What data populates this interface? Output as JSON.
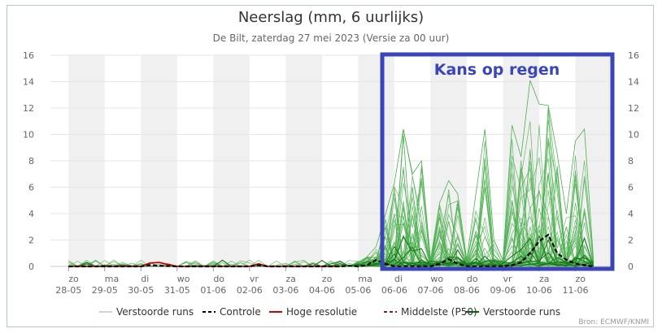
{
  "chart_data": {
    "type": "line",
    "title": "Neerslag (mm, 6 uurlijks)",
    "subtitle": "De Bilt, zaterdag 27 mei 2023 (Versie za 00 uur)",
    "ylim": [
      0,
      16
    ],
    "yticks": [
      0,
      2,
      4,
      6,
      8,
      10,
      12,
      14,
      16
    ],
    "x_range": [
      -0.5,
      15
    ],
    "day_labels": [
      {
        "day": "zo",
        "date": "28-05"
      },
      {
        "day": "ma",
        "date": "29-05"
      },
      {
        "day": "di",
        "date": "30-05"
      },
      {
        "day": "wo",
        "date": "31-05"
      },
      {
        "day": "do",
        "date": "01-06"
      },
      {
        "day": "vr",
        "date": "02-06"
      },
      {
        "day": "za",
        "date": "03-06"
      },
      {
        "day": "zo",
        "date": "04-06"
      },
      {
        "day": "ma",
        "date": "05-06"
      },
      {
        "day": "di",
        "date": "06-06"
      },
      {
        "day": "wo",
        "date": "07-06"
      },
      {
        "day": "do",
        "date": "08-06"
      },
      {
        "day": "vr",
        "date": "09-06"
      },
      {
        "day": "za",
        "date": "10-06"
      },
      {
        "day": "zo",
        "date": "11-06"
      }
    ],
    "grid": true,
    "legend_position": "bottom",
    "legend": [
      {
        "label": "Verstoorde runs",
        "color": "#a8d8a0",
        "style": "solid-thin"
      },
      {
        "label": "Controle",
        "color": "#000000",
        "style": "dashed"
      },
      {
        "label": "Hoge resolutie",
        "color": "#cc0000",
        "style": "solid"
      },
      {
        "label": "Middelste (P50)",
        "color": "#8b1a1a",
        "style": "dashed"
      },
      {
        "label": "Verstoorde runs",
        "color": "#006400",
        "style": "solid"
      }
    ],
    "controle": {
      "x": [
        0,
        1,
        2,
        2.25,
        2.5,
        3,
        4,
        5,
        5.25,
        5.5,
        6,
        7,
        7.5,
        7.75,
        8,
        8.25,
        8.5,
        8.75,
        9,
        9.5,
        10,
        10.25,
        10.5,
        10.75,
        11,
        11.5,
        12,
        12.25,
        12.5,
        12.75,
        13,
        13.25,
        13.5,
        13.75,
        14,
        14.25,
        14.5
      ],
      "y": [
        0,
        0,
        0,
        0.1,
        0.05,
        0,
        0,
        0,
        0.1,
        0,
        0,
        0,
        0,
        0.05,
        0,
        0.1,
        0.5,
        0.2,
        0,
        0,
        0,
        0.2,
        0.55,
        0.2,
        0,
        0,
        0,
        0.1,
        0.3,
        1.0,
        1.9,
        2.4,
        1.0,
        0.5,
        0.2,
        0.1,
        0
      ]
    },
    "hoge_resolutie": {
      "x": [
        0,
        1,
        2,
        2.25,
        2.5,
        2.75,
        3,
        4,
        5,
        5.25,
        5.5,
        6,
        7,
        7.5
      ],
      "y": [
        0,
        0,
        0,
        0.25,
        0.3,
        0.15,
        0,
        0,
        0,
        0.2,
        0,
        0,
        0,
        0
      ]
    },
    "ensemble_max": {
      "x": [
        8,
        8.5,
        9,
        9.25,
        9.5,
        9.75,
        10,
        10.25,
        10.5,
        10.75,
        11,
        11.5,
        11.75,
        12,
        12.25,
        12.5,
        12.75,
        13,
        13.25,
        13.5,
        13.75,
        14,
        14.25,
        14.5
      ],
      "y": [
        0,
        1.5,
        6.3,
        10.4,
        7.0,
        8.0,
        0.5,
        4.8,
        6.5,
        5.5,
        0.5,
        10.4,
        2.0,
        0.5,
        10.7,
        8.3,
        14.1,
        12.3,
        12.2,
        8.5,
        4.0,
        9.5,
        10.4,
        0.5
      ]
    },
    "annotation": "Kans op regen",
    "source": "Bron: ECMWF/KNMI"
  }
}
